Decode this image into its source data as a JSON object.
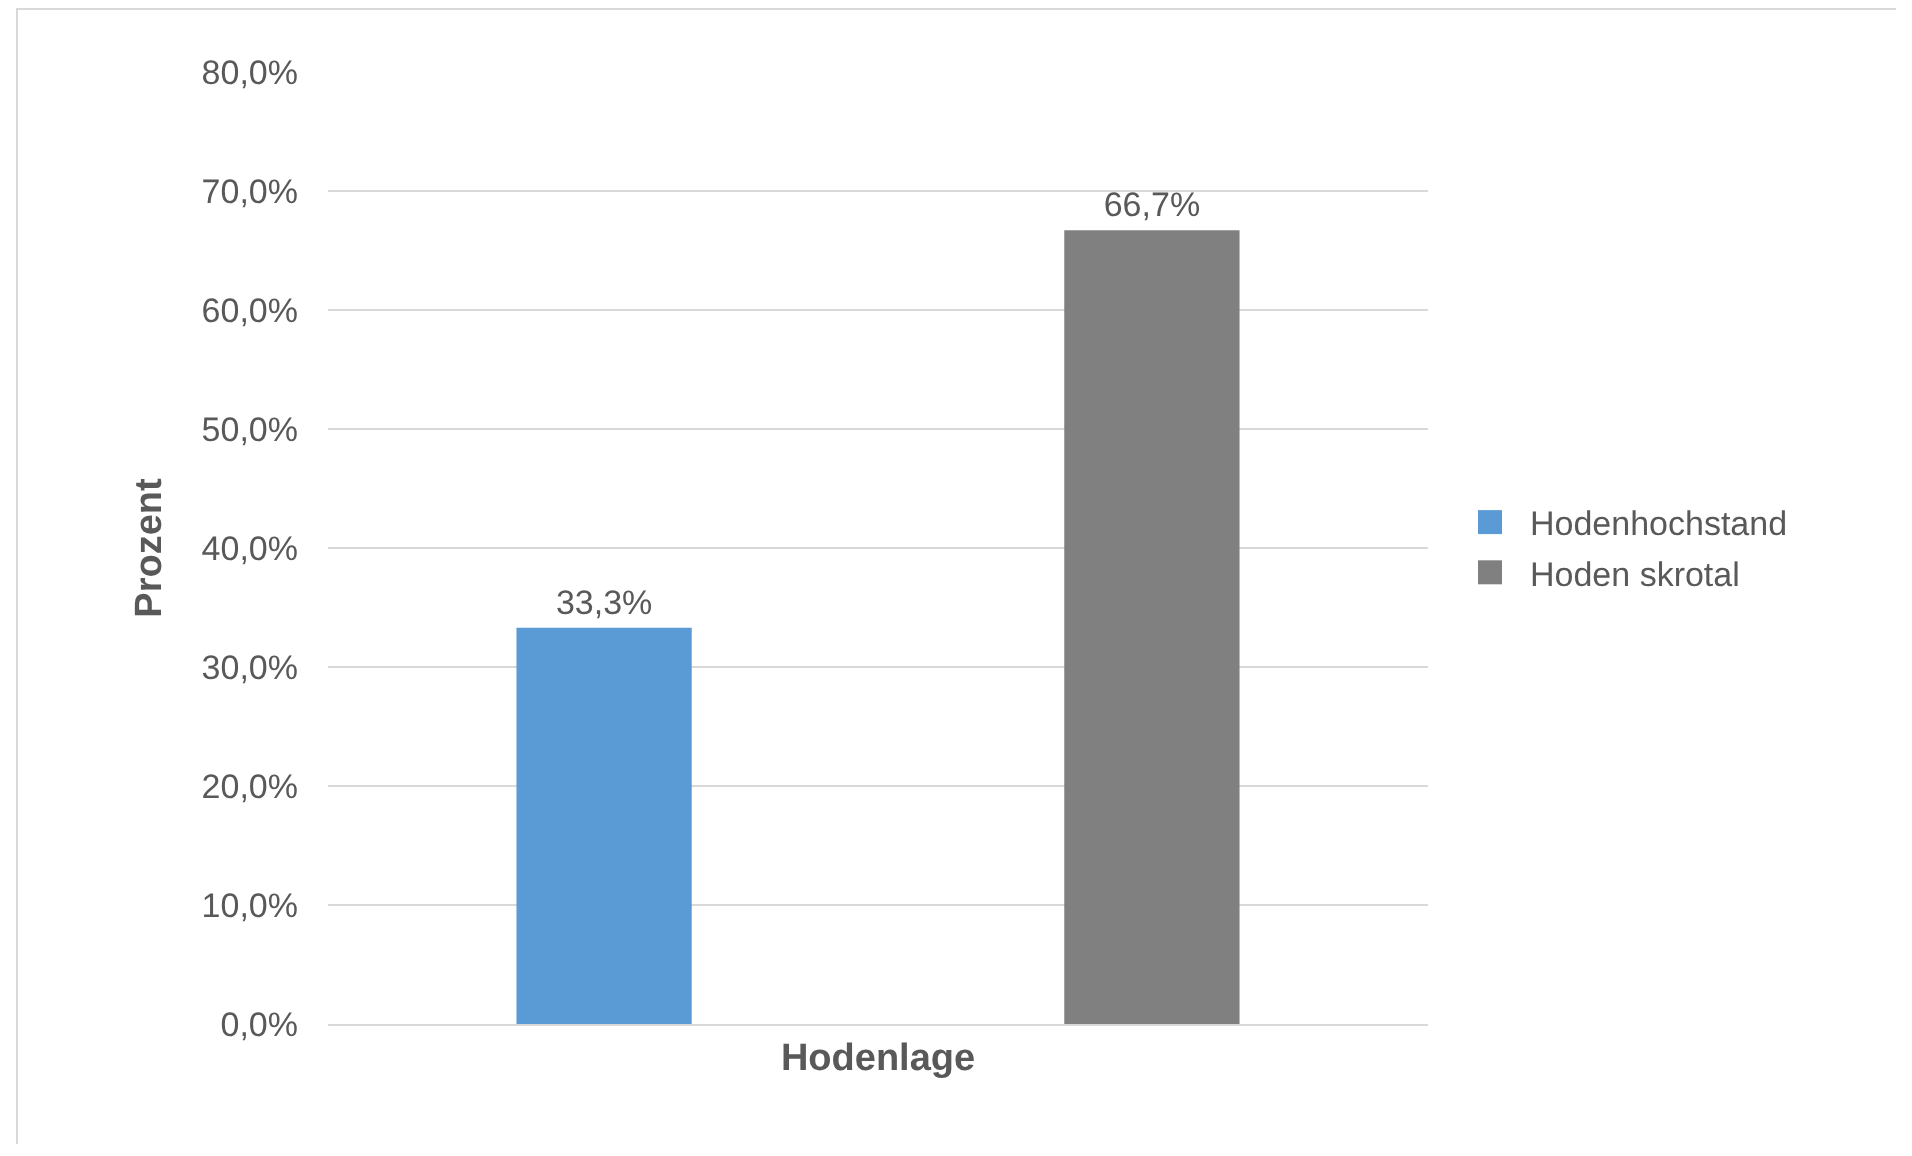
{
  "chart_data": {
    "type": "bar",
    "xlabel": "Hodenlage",
    "ylabel": "Prozent",
    "categories": [
      null
    ],
    "series": [
      {
        "name": "Hodenhochstand",
        "color": "#5b9bd5",
        "values": [
          33.3
        ],
        "value_labels": [
          "33,3%"
        ]
      },
      {
        "name": "Hoden skrotal",
        "color": "#808080",
        "values": [
          66.7
        ],
        "value_labels": [
          "66,7%"
        ]
      }
    ],
    "ylim": [
      0,
      80
    ],
    "yticks": [
      {
        "value": 0,
        "label": "0,0%"
      },
      {
        "value": 10,
        "label": "10,0%"
      },
      {
        "value": 20,
        "label": "20,0%"
      },
      {
        "value": 30,
        "label": "30,0%"
      },
      {
        "value": 40,
        "label": "40,0%"
      },
      {
        "value": 50,
        "label": "50,0%"
      },
      {
        "value": 60,
        "label": "60,0%"
      },
      {
        "value": 70,
        "label": "70,0%"
      },
      {
        "value": 80,
        "label": "80,0%"
      }
    ],
    "grid": "y",
    "legend": "right"
  }
}
